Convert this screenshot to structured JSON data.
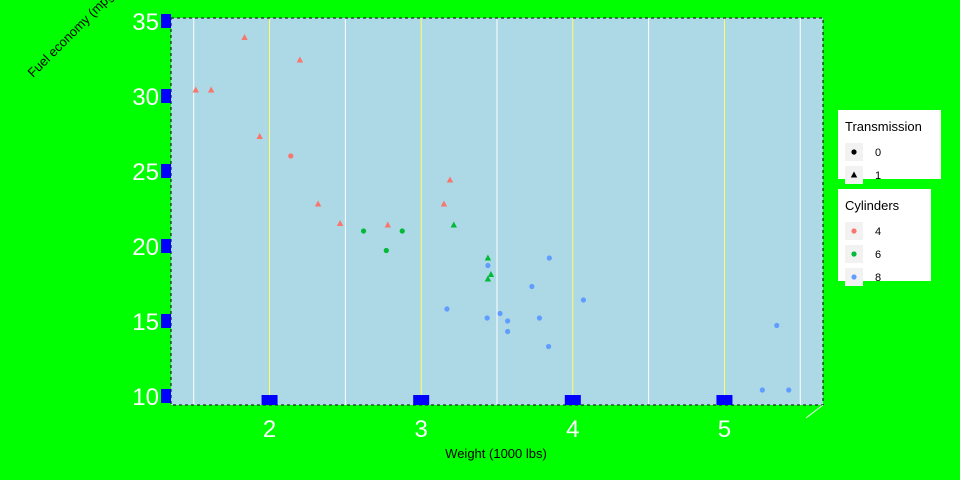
{
  "chart_data": {
    "type": "scatter",
    "title": "",
    "xlabel": "Weight (1000 lbs)",
    "ylabel": "Fuel economy (mpg)",
    "xlim": [
      1.35,
      5.65
    ],
    "ylim": [
      9.4,
      35.2
    ],
    "x_ticks": [
      2,
      3,
      4,
      5
    ],
    "y_ticks": [
      10,
      15,
      20,
      25,
      30,
      35
    ],
    "grid": true,
    "legend_position": "right",
    "legends": [
      {
        "title": "Transmission",
        "entries": [
          {
            "label": "0",
            "shape": "circle"
          },
          {
            "label": "1",
            "shape": "triangle"
          }
        ]
      },
      {
        "title": "Cylinders",
        "entries": [
          {
            "label": "4",
            "color": "#f8766d"
          },
          {
            "label": "6",
            "color": "#00ba38"
          },
          {
            "label": "8",
            "color": "#619cff"
          }
        ]
      }
    ],
    "colors": {
      "4": "#f8766d",
      "6": "#00ba38",
      "8": "#619cff"
    },
    "points": [
      {
        "x": 1.513,
        "y": 30.4,
        "cyl": "4",
        "am": "1"
      },
      {
        "x": 1.615,
        "y": 30.4,
        "cyl": "4",
        "am": "1"
      },
      {
        "x": 1.835,
        "y": 33.9,
        "cyl": "4",
        "am": "1"
      },
      {
        "x": 1.935,
        "y": 27.3,
        "cyl": "4",
        "am": "1"
      },
      {
        "x": 2.2,
        "y": 32.4,
        "cyl": "4",
        "am": "1"
      },
      {
        "x": 2.14,
        "y": 26.0,
        "cyl": "4",
        "am": "0"
      },
      {
        "x": 2.32,
        "y": 22.8,
        "cyl": "4",
        "am": "1"
      },
      {
        "x": 2.465,
        "y": 21.5,
        "cyl": "4",
        "am": "1"
      },
      {
        "x": 2.78,
        "y": 21.4,
        "cyl": "4",
        "am": "1"
      },
      {
        "x": 3.15,
        "y": 22.8,
        "cyl": "4",
        "am": "1"
      },
      {
        "x": 3.19,
        "y": 24.4,
        "cyl": "4",
        "am": "1"
      },
      {
        "x": 2.62,
        "y": 21.0,
        "cyl": "6",
        "am": "0"
      },
      {
        "x": 2.77,
        "y": 19.7,
        "cyl": "6",
        "am": "0"
      },
      {
        "x": 2.875,
        "y": 21.0,
        "cyl": "6",
        "am": "0"
      },
      {
        "x": 3.215,
        "y": 21.4,
        "cyl": "6",
        "am": "1"
      },
      {
        "x": 3.44,
        "y": 19.2,
        "cyl": "6",
        "am": "1"
      },
      {
        "x": 3.44,
        "y": 17.8,
        "cyl": "6",
        "am": "1"
      },
      {
        "x": 3.46,
        "y": 18.1,
        "cyl": "6",
        "am": "1"
      },
      {
        "x": 3.17,
        "y": 15.8,
        "cyl": "8",
        "am": "0"
      },
      {
        "x": 3.435,
        "y": 15.2,
        "cyl": "8",
        "am": "0"
      },
      {
        "x": 3.44,
        "y": 18.7,
        "cyl": "8",
        "am": "0"
      },
      {
        "x": 3.52,
        "y": 15.5,
        "cyl": "8",
        "am": "0"
      },
      {
        "x": 3.57,
        "y": 15.0,
        "cyl": "8",
        "am": "0"
      },
      {
        "x": 3.57,
        "y": 14.3,
        "cyl": "8",
        "am": "0"
      },
      {
        "x": 3.73,
        "y": 17.3,
        "cyl": "8",
        "am": "0"
      },
      {
        "x": 3.78,
        "y": 15.2,
        "cyl": "8",
        "am": "0"
      },
      {
        "x": 3.84,
        "y": 13.3,
        "cyl": "8",
        "am": "0"
      },
      {
        "x": 3.845,
        "y": 19.2,
        "cyl": "8",
        "am": "0"
      },
      {
        "x": 4.07,
        "y": 16.4,
        "cyl": "8",
        "am": "0"
      },
      {
        "x": 5.25,
        "y": 10.4,
        "cyl": "8",
        "am": "0"
      },
      {
        "x": 5.345,
        "y": 14.7,
        "cyl": "8",
        "am": "0"
      },
      {
        "x": 5.424,
        "y": 10.4,
        "cyl": "8",
        "am": "0"
      }
    ]
  }
}
